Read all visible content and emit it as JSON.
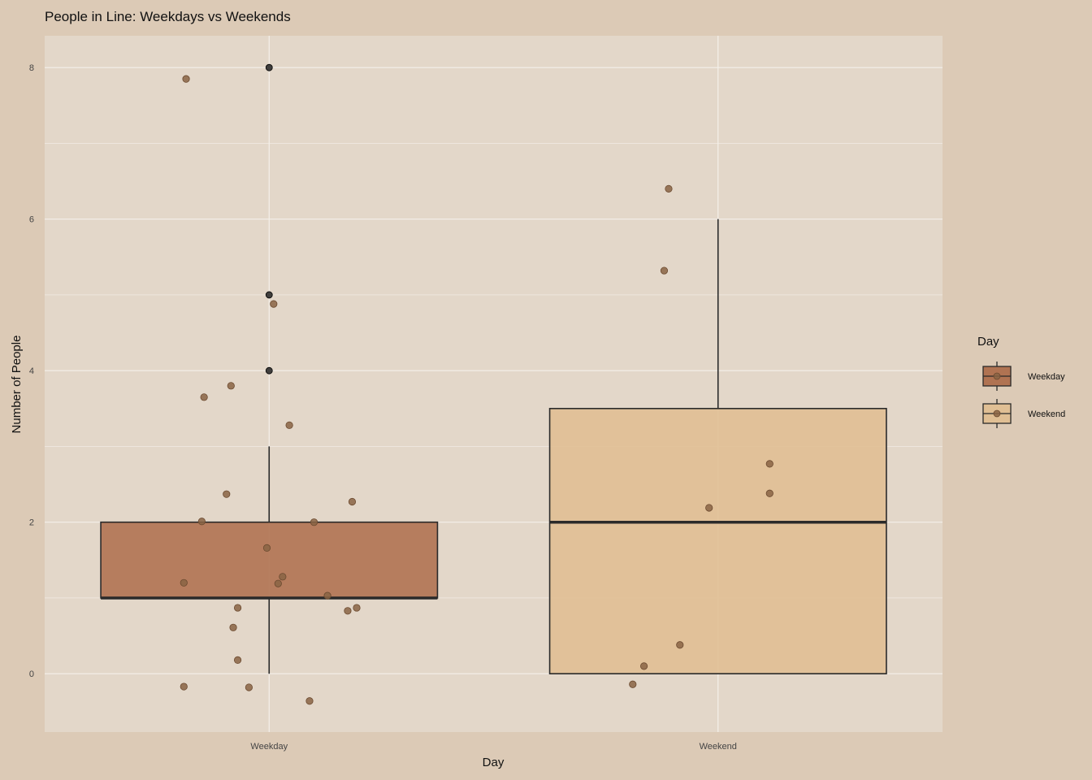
{
  "chart_data": {
    "type": "box",
    "title": "People in Line: Weekdays vs Weekends",
    "xlabel": "Day",
    "ylabel": "Number of People",
    "categories": [
      "Weekday",
      "Weekend"
    ],
    "ylim": [
      -0.77,
      8.42
    ],
    "yticks": [
      0,
      2,
      4,
      6,
      8
    ],
    "grid": true,
    "legend": {
      "title": "Day",
      "position": "right",
      "entries": [
        "Weekday",
        "Weekend"
      ]
    },
    "colors": {
      "background": "#dccab6",
      "panel": "#e3d7c9",
      "grid": "#f4f0ea",
      "Weekday": "#b07352",
      "Weekend": "#e0bf94",
      "point": "#8a6444",
      "outlier": "#222222",
      "box_line": "#2a2a2a"
    },
    "boxes": [
      {
        "category": "Weekday",
        "q1": 1,
        "median": 1,
        "q3": 2,
        "whisker_low": 0,
        "whisker_high": 3,
        "outliers": [
          4,
          5,
          8
        ]
      },
      {
        "category": "Weekend",
        "q1": 0,
        "median": 2,
        "q3": 3.5,
        "whisker_low": 0,
        "whisker_high": 6,
        "outliers": []
      }
    ],
    "points": [
      {
        "category": "Weekday",
        "jitter": -0.37,
        "y": 7.85
      },
      {
        "category": "Weekday",
        "jitter": 0.02,
        "y": 4.88
      },
      {
        "category": "Weekday",
        "jitter": -0.17,
        "y": 3.8
      },
      {
        "category": "Weekday",
        "jitter": -0.29,
        "y": 3.65
      },
      {
        "category": "Weekday",
        "jitter": 0.09,
        "y": 3.28
      },
      {
        "category": "Weekday",
        "jitter": -0.19,
        "y": 2.37
      },
      {
        "category": "Weekday",
        "jitter": 0.37,
        "y": 2.27
      },
      {
        "category": "Weekday",
        "jitter": -0.3,
        "y": 2.01
      },
      {
        "category": "Weekday",
        "jitter": 0.2,
        "y": 2.0
      },
      {
        "category": "Weekday",
        "jitter": -0.01,
        "y": 1.66
      },
      {
        "category": "Weekday",
        "jitter": 0.06,
        "y": 1.28
      },
      {
        "category": "Weekday",
        "jitter": -0.38,
        "y": 1.2
      },
      {
        "category": "Weekday",
        "jitter": 0.04,
        "y": 1.19
      },
      {
        "category": "Weekday",
        "jitter": 0.26,
        "y": 1.03
      },
      {
        "category": "Weekday",
        "jitter": 0.39,
        "y": 0.87
      },
      {
        "category": "Weekday",
        "jitter": -0.14,
        "y": 0.87
      },
      {
        "category": "Weekday",
        "jitter": 0.35,
        "y": 0.83
      },
      {
        "category": "Weekday",
        "jitter": -0.16,
        "y": 0.61
      },
      {
        "category": "Weekday",
        "jitter": -0.14,
        "y": 0.18
      },
      {
        "category": "Weekday",
        "jitter": -0.38,
        "y": -0.17
      },
      {
        "category": "Weekday",
        "jitter": -0.09,
        "y": -0.18
      },
      {
        "category": "Weekday",
        "jitter": 0.18,
        "y": -0.36
      },
      {
        "category": "Weekend",
        "jitter": -0.22,
        "y": 6.4
      },
      {
        "category": "Weekend",
        "jitter": -0.24,
        "y": 5.32
      },
      {
        "category": "Weekend",
        "jitter": 0.23,
        "y": 2.77
      },
      {
        "category": "Weekend",
        "jitter": 0.23,
        "y": 2.38
      },
      {
        "category": "Weekend",
        "jitter": -0.04,
        "y": 2.19
      },
      {
        "category": "Weekend",
        "jitter": -0.17,
        "y": 0.38
      },
      {
        "category": "Weekend",
        "jitter": -0.33,
        "y": 0.1
      },
      {
        "category": "Weekend",
        "jitter": -0.38,
        "y": -0.14
      }
    ]
  }
}
